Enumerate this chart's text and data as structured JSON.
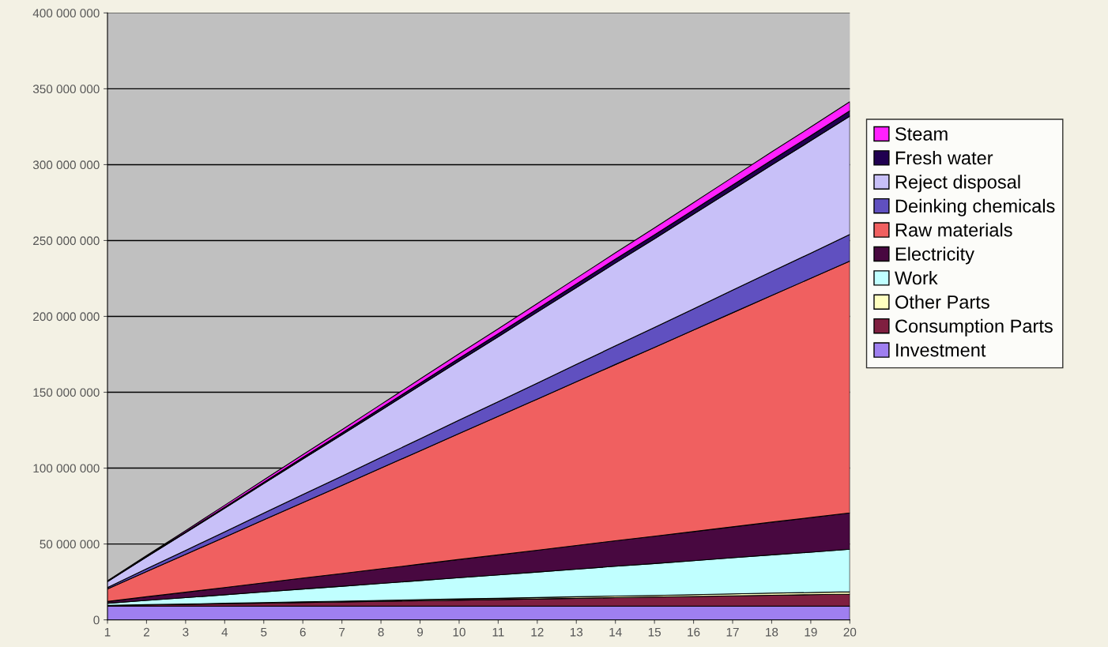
{
  "chart_data": {
    "type": "area",
    "stacked": true,
    "categories": [
      "1",
      "2",
      "3",
      "4",
      "5",
      "6",
      "7",
      "8",
      "9",
      "10",
      "11",
      "12",
      "13",
      "14",
      "15",
      "16",
      "17",
      "18",
      "19",
      "20"
    ],
    "series": [
      {
        "name": "Investment",
        "color": "#9f7ff0",
        "values": [
          9000000,
          9000000,
          9000000,
          9000000,
          9000000,
          9000000,
          9000000,
          9000000,
          9000000,
          9000000,
          9000000,
          9000000,
          9000000,
          9000000,
          9000000,
          9000000,
          9000000,
          9000000,
          9000000,
          9000000
        ]
      },
      {
        "name": "Consumption Parts",
        "color": "#7f1f40",
        "values": [
          400000,
          800000,
          1200000,
          1600000,
          2000000,
          2400000,
          2800000,
          3200000,
          3600000,
          4000000,
          4400000,
          4800000,
          5200000,
          5600000,
          6000000,
          6400000,
          6800000,
          7200000,
          7600000,
          8000000
        ]
      },
      {
        "name": "Other Parts",
        "color": "#ffffc0",
        "values": [
          100000,
          200000,
          200000,
          300000,
          400000,
          500000,
          500000,
          600000,
          700000,
          800000,
          800000,
          900000,
          1000000,
          1100000,
          1100000,
          1200000,
          1300000,
          1400000,
          1400000,
          1500000
        ]
      },
      {
        "name": "Work",
        "color": "#c0ffff",
        "values": [
          1400000,
          2800000,
          4200000,
          5600000,
          7000000,
          8400000,
          9800000,
          11200000,
          12600000,
          14000000,
          15400000,
          16800000,
          18200000,
          19600000,
          21000000,
          22400000,
          23800000,
          25200000,
          26600000,
          28000000
        ]
      },
      {
        "name": "Electricity",
        "color": "#480840",
        "values": [
          1200000,
          2400000,
          3600000,
          4800000,
          6000000,
          7200000,
          8400000,
          9600000,
          10800000,
          12000000,
          13200000,
          14400000,
          15600000,
          16800000,
          18000000,
          19200000,
          20400000,
          21600000,
          22800000,
          24000000
        ]
      },
      {
        "name": "Raw materials",
        "color": "#f06060",
        "values": [
          8300000,
          16600000,
          24900000,
          33200000,
          41500000,
          49800000,
          58100000,
          66400000,
          74700000,
          83000000,
          91300000,
          99600000,
          107900000,
          116200000,
          124500000,
          132800000,
          141100000,
          149400000,
          157700000,
          166000000
        ]
      },
      {
        "name": "Deinking chemicals",
        "color": "#6050c0",
        "values": [
          900000,
          1800000,
          2600000,
          3500000,
          4400000,
          5300000,
          6100000,
          7000000,
          7900000,
          8800000,
          9600000,
          10500000,
          11400000,
          12300000,
          13100000,
          14000000,
          14900000,
          15800000,
          16600000,
          17500000
        ]
      },
      {
        "name": "Reject disposal",
        "color": "#c8c0f8",
        "values": [
          3900000,
          7800000,
          11700000,
          15600000,
          19500000,
          23400000,
          27300000,
          31200000,
          35100000,
          39000000,
          42900000,
          46800000,
          50700000,
          54600000,
          58500000,
          62400000,
          66300000,
          70200000,
          74100000,
          78000000
        ]
      },
      {
        "name": "Fresh water",
        "color": "#200050",
        "values": [
          200000,
          400000,
          500000,
          700000,
          900000,
          1100000,
          1200000,
          1400000,
          1600000,
          1800000,
          1900000,
          2100000,
          2300000,
          2500000,
          2600000,
          2800000,
          3000000,
          3200000,
          3300000,
          3500000
        ]
      },
      {
        "name": "Steam",
        "color": "#ff20ff",
        "values": [
          300000,
          600000,
          900000,
          1200000,
          1500000,
          1800000,
          2100000,
          2400000,
          2700000,
          3000000,
          3300000,
          3600000,
          3900000,
          4200000,
          4500000,
          4800000,
          5100000,
          5400000,
          5700000,
          6000000
        ]
      }
    ],
    "ylim": [
      0,
      400000000
    ],
    "yticks": [
      0,
      {
        "value": 50000000,
        "label": "50 000 000"
      },
      {
        "value": 100000000,
        "label": "100 000 000"
      },
      {
        "value": 150000000,
        "label": "150 000 000"
      },
      {
        "value": 200000000,
        "label": "200 000 000"
      },
      {
        "value": 250000000,
        "label": "250 000 000"
      },
      {
        "value": 300000000,
        "label": "300 000 000"
      },
      {
        "value": 350000000,
        "label": "350 000 000"
      },
      {
        "value": 400000000,
        "label": "400 000 000"
      }
    ],
    "grid": "y",
    "legend": "right"
  }
}
